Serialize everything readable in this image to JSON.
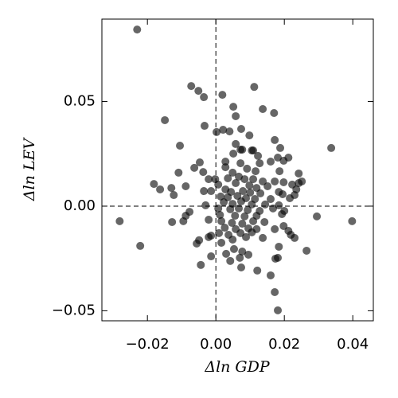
{
  "chart_data": {
    "type": "scatter",
    "x_label": "Δln GDP",
    "y_label": "Δln LEV",
    "color": "#000000",
    "alpha": 0.6,
    "xlim": [
      -0.0333,
      0.046
    ],
    "ylim": [
      -0.0548,
      0.0894
    ],
    "xticks": [
      {
        "value": -0.02,
        "label": "−0.02"
      },
      {
        "value": 0,
        "label": "0.00"
      },
      {
        "value": 0.02,
        "label": "0.02"
      },
      {
        "value": 0.04,
        "label": "0.04"
      }
    ],
    "yticks": [
      {
        "value": -0.05,
        "label": "−0.05"
      },
      {
        "value": 0,
        "label": "0.00"
      },
      {
        "value": 0.05,
        "label": "0.05"
      }
    ],
    "hlines": [
      0
    ],
    "vlines": [
      0
    ],
    "x": [
      -0.023,
      -0.0281,
      -0.0221,
      -0.0149,
      -0.0181,
      -0.0163,
      -0.013,
      -0.0123,
      -0.0128,
      -0.0105,
      -0.0109,
      -0.0088,
      -0.0088,
      -0.0095,
      -0.0072,
      -0.0051,
      -0.0035,
      -0.0063,
      -0.0047,
      -0.0077,
      -0.0056,
      -0.0049,
      -0.0033,
      -0.0037,
      -0.0035,
      -0.0021,
      -0.003,
      -0.0021,
      -0.0021,
      -0.0014,
      -0.0044,
      0.0019,
      0.0112,
      0.0051,
      0.0137,
      0.017,
      0.0058,
      0.0002,
      0.0021,
      0.004,
      0.0074,
      0.0098,
      0.0058,
      0.0172,
      0.0072,
      0.0077,
      0.0105,
      0.0109,
      0.0123,
      0.0337,
      0.0188,
      0.0181,
      0.0212,
      0.0028,
      0.0051,
      0.0072,
      0.0128,
      0.016,
      0.0198,
      0.0028,
      0.0049,
      0.0091,
      0.0116,
      0.0242,
      0.0251,
      0.0242,
      0.0186,
      -0.0002,
      0.0035,
      0.0067,
      0.0084,
      0.0109,
      0.0137,
      0.0172,
      0.0198,
      0.0223,
      0.0007,
      0.0058,
      0.0098,
      0.0119,
      0.0151,
      0.0235,
      -0.0014,
      0.0028,
      0.0044,
      0.0079,
      0.01,
      0.013,
      0.0184,
      0.0195,
      0.023,
      0.0014,
      0.0035,
      0.0063,
      0.0088,
      0.0114,
      0.016,
      0.0216,
      0.0023,
      0.0049,
      0.0074,
      0.0105,
      0.0144,
      0.0184,
      0.0007,
      0.0042,
      0.0067,
      0.0093,
      0.0128,
      0.0167,
      0.02,
      0.0012,
      0.0056,
      0.0084,
      0.0119,
      0.0193,
      0.0295,
      0.0398,
      0.0016,
      0.0047,
      0.0077,
      0.0109,
      0.0142,
      0.0026,
      0.0058,
      0.0095,
      0.0119,
      0.0172,
      0.0212,
      0.0198,
      0.0009,
      0.0037,
      0.0072,
      0.0105,
      -0.0014,
      0.0049,
      0.0088,
      0.0219,
      0.023,
      0.0137,
      0.0016,
      0.003,
      0.0053,
      0.0077,
      0.0095,
      0.007,
      0.0042,
      0.0074,
      0.0184,
      0.0181,
      0.0265,
      0.0121,
      0.016,
      0.0172,
      0.0181,
      0.0174
    ],
    "y": [
      0.0844,
      -0.0072,
      -0.019,
      0.0411,
      0.0106,
      0.008,
      0.0087,
      0.0053,
      -0.0076,
      0.0289,
      0.016,
      0.0095,
      -0.0046,
      -0.0072,
      0.0574,
      0.0551,
      0.0521,
      0.0183,
      0.0209,
      -0.0027,
      -0.0179,
      -0.0163,
      0.0384,
      0.0163,
      0.0072,
      0.0129,
      0.0004,
      -0.0065,
      -0.0148,
      -0.024,
      -0.0281,
      0.0532,
      0.057,
      0.0475,
      0.0464,
      0.0445,
      0.043,
      0.0354,
      0.0365,
      0.0357,
      0.0369,
      0.0338,
      0.0297,
      0.0316,
      0.027,
      0.027,
      0.0266,
      0.0266,
      0.024,
      0.0278,
      0.0278,
      0.0232,
      0.0232,
      0.0213,
      0.0251,
      0.0205,
      0.0205,
      0.0213,
      0.0217,
      0.0186,
      0.016,
      0.0179,
      0.0167,
      0.0156,
      0.0118,
      0.011,
      0.0167,
      0.0129,
      0.0133,
      0.0141,
      0.0129,
      0.0129,
      0.0118,
      0.0118,
      0.0114,
      0.0103,
      0.0103,
      0.011,
      0.0099,
      0.0087,
      0.0095,
      0.008,
      0.0072,
      0.008,
      0.0068,
      0.0072,
      0.0065,
      0.0061,
      0.0068,
      0.0057,
      0.0053,
      0.0046,
      0.0042,
      0.0049,
      0.0038,
      0.0034,
      0.0034,
      0.0038,
      0.0019,
      0.0011,
      0.0023,
      0.0008,
      0.0008,
      0.0004,
      -0.0011,
      -0.0015,
      -0.0011,
      -0.0019,
      -0.0023,
      -0.0011,
      -0.0023,
      -0.0042,
      -0.0046,
      -0.0049,
      -0.0046,
      -0.0038,
      -0.0049,
      -0.0072,
      -0.0072,
      -0.008,
      -0.0084,
      -0.0072,
      -0.0076,
      -0.0103,
      -0.011,
      -0.0106,
      -0.011,
      -0.011,
      -0.0118,
      -0.0095,
      -0.0129,
      -0.0137,
      -0.0129,
      -0.0125,
      -0.0141,
      -0.016,
      -0.0148,
      -0.0137,
      -0.0152,
      -0.0152,
      -0.0175,
      -0.0228,
      -0.0205,
      -0.0217,
      -0.0232,
      -0.0247,
      -0.0262,
      -0.0293,
      -0.0194,
      -0.0247,
      -0.0213,
      -0.0308,
      -0.0331,
      -0.0411,
      -0.0498,
      -0.0251
    ]
  }
}
